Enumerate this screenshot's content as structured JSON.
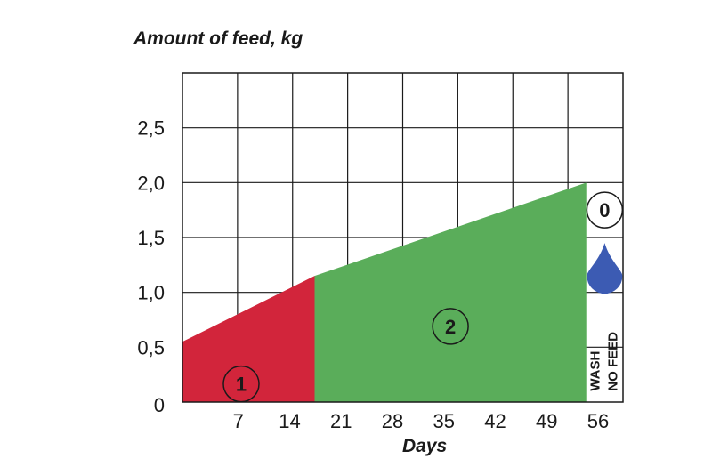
{
  "chart_data": {
    "type": "area",
    "title": "",
    "ylabel": "Amount of feed, kg",
    "xlabel": "Days",
    "xlim": [
      0,
      60
    ],
    "ylim": [
      0,
      3.0
    ],
    "grid": true,
    "y_ticks": [
      "0",
      "0,5",
      "1,0",
      "1,5",
      "2,0",
      "2,5"
    ],
    "y_tick_values": [
      0,
      0.5,
      1.0,
      1.5,
      2.0,
      2.5
    ],
    "x_ticks": [
      "7",
      "14",
      "21",
      "28",
      "35",
      "42",
      "49",
      "56"
    ],
    "x_tick_values": [
      7,
      14,
      21,
      28,
      35,
      42,
      49,
      56
    ],
    "phases": [
      {
        "label": "1",
        "color": "#d2253b",
        "points": [
          [
            0,
            0.55
          ],
          [
            18,
            1.15
          ]
        ]
      },
      {
        "label": "2",
        "color": "#5aad5a",
        "points": [
          [
            18,
            1.15
          ],
          [
            55,
            2.0
          ]
        ]
      },
      {
        "label": "0",
        "days": [
          55,
          60
        ],
        "lines": [
          "WASH",
          "NO FEED"
        ],
        "icon": "water-drop-icon",
        "icon_color": "#3c5bb3"
      }
    ]
  }
}
